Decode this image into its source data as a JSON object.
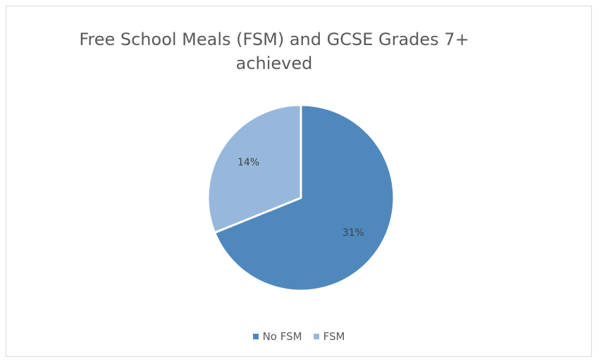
{
  "chart_data": {
    "type": "pie",
    "title": "Free School Meals (FSM) and GCSE Grades 7+ achieved",
    "title_lines": [
      "Free School Meals (FSM) and GCSE Grades 7+",
      "achieved"
    ],
    "categories": [
      "No FSM",
      "FSM"
    ],
    "values": [
      31,
      14
    ],
    "data_labels": [
      "31%",
      "14%"
    ],
    "colors": [
      "#4f88bd",
      "#97b8dc"
    ],
    "legend_position": "bottom",
    "start_angle": "top, clockwise"
  }
}
